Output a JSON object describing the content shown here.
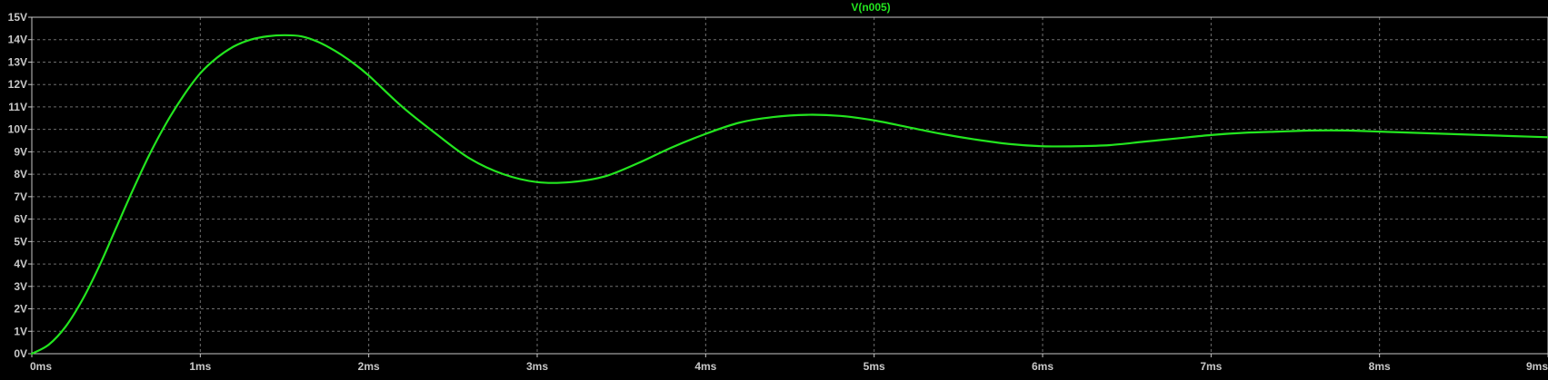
{
  "chart_data": {
    "type": "line",
    "title": "V(n005)",
    "xlabel": "",
    "ylabel": "",
    "x_unit": "ms",
    "y_unit": "V",
    "xlim": [
      0,
      9
    ],
    "ylim": [
      0,
      15
    ],
    "grid": true,
    "x_ticks": [
      "0ms",
      "1ms",
      "2ms",
      "3ms",
      "4ms",
      "5ms",
      "6ms",
      "7ms",
      "8ms",
      "9ms"
    ],
    "y_ticks": [
      "0V",
      "1V",
      "2V",
      "3V",
      "4V",
      "5V",
      "6V",
      "7V",
      "8V",
      "9V",
      "10V",
      "11V",
      "12V",
      "13V",
      "14V",
      "15V"
    ],
    "series": [
      {
        "name": "V(n005)",
        "color": "#23e51f",
        "x": [
          0,
          0.1,
          0.2,
          0.3,
          0.4,
          0.5,
          0.6,
          0.7,
          0.8,
          0.9,
          1.0,
          1.1,
          1.2,
          1.3,
          1.4,
          1.5,
          1.6,
          1.7,
          1.8,
          1.9,
          2.0,
          2.2,
          2.4,
          2.6,
          2.8,
          3.0,
          3.2,
          3.4,
          3.6,
          3.8,
          4.0,
          4.2,
          4.4,
          4.6,
          4.8,
          5.0,
          5.2,
          5.4,
          5.6,
          5.8,
          6.0,
          6.2,
          6.4,
          6.6,
          6.8,
          7.0,
          7.2,
          7.4,
          7.6,
          7.8,
          8.0,
          8.2,
          8.4,
          8.6,
          8.8,
          9.0
        ],
        "y": [
          0,
          0.4,
          1.2,
          2.4,
          3.9,
          5.6,
          7.3,
          8.9,
          10.3,
          11.5,
          12.5,
          13.2,
          13.7,
          14.0,
          14.15,
          14.2,
          14.15,
          13.9,
          13.5,
          13.0,
          12.4,
          11.0,
          9.8,
          8.7,
          8.0,
          7.65,
          7.65,
          7.9,
          8.5,
          9.2,
          9.8,
          10.3,
          10.55,
          10.65,
          10.6,
          10.4,
          10.1,
          9.8,
          9.55,
          9.35,
          9.25,
          9.25,
          9.3,
          9.45,
          9.6,
          9.75,
          9.85,
          9.9,
          9.95,
          9.95,
          9.9,
          9.85,
          9.8,
          9.75,
          9.7,
          9.65
        ]
      }
    ]
  }
}
